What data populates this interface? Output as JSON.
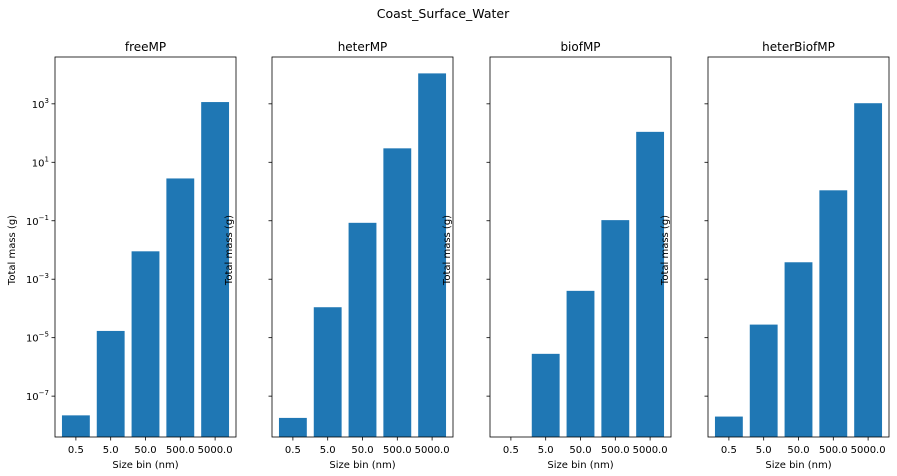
{
  "figure": {
    "title": "Coast_Surface_Water",
    "bar_color": "#1f77b4"
  },
  "chart_data": [
    {
      "type": "bar",
      "title": "freeMP",
      "xlabel": "Size bin (nm)",
      "ylabel": "Total mass (g)",
      "yscale": "log",
      "ylim": [
        4e-09,
        40000
      ],
      "yticks": [
        1e-07,
        1e-05,
        0.001,
        0.1,
        10,
        1000
      ],
      "ytick_labels": [
        {
          "base": "10",
          "exp": "−7"
        },
        {
          "base": "10",
          "exp": "−5"
        },
        {
          "base": "10",
          "exp": "−3"
        },
        {
          "base": "10",
          "exp": "−1"
        },
        {
          "base": "10",
          "exp": "1"
        },
        {
          "base": "10",
          "exp": "3"
        }
      ],
      "show_ytick_labels": true,
      "categories": [
        "0.5",
        "5.0",
        "50.0",
        "500.0",
        "5000.0"
      ],
      "values": [
        2.2e-08,
        1.7e-05,
        0.009,
        2.8,
        1150
      ]
    },
    {
      "type": "bar",
      "title": "heterMP",
      "xlabel": "Size bin (nm)",
      "ylabel": "Total mass (g)",
      "yscale": "log",
      "ylim": [
        4e-09,
        40000
      ],
      "yticks": [
        1e-07,
        1e-05,
        0.001,
        0.1,
        10,
        1000
      ],
      "show_ytick_labels": false,
      "categories": [
        "0.5",
        "5.0",
        "50.0",
        "500.0",
        "5000.0"
      ],
      "values": [
        1.8e-08,
        0.00011,
        0.085,
        30,
        11000
      ]
    },
    {
      "type": "bar",
      "title": "biofMP",
      "xlabel": "Size bin (nm)",
      "ylabel": "Total mass (g)",
      "yscale": "log",
      "ylim": [
        4e-09,
        40000
      ],
      "yticks": [
        1e-07,
        1e-05,
        0.001,
        0.1,
        10,
        1000
      ],
      "show_ytick_labels": false,
      "categories": [
        "0.5",
        "5.0",
        "50.0",
        "500.0",
        "5000.0"
      ],
      "values": [
        null,
        2.8e-06,
        0.0004,
        0.105,
        110
      ]
    },
    {
      "type": "bar",
      "title": "heterBiofMP",
      "xlabel": "Size bin (nm)",
      "ylabel": "Total mass (g)",
      "yscale": "log",
      "ylim": [
        4e-09,
        40000
      ],
      "yticks": [
        1e-07,
        1e-05,
        0.001,
        0.1,
        10,
        1000
      ],
      "show_ytick_labels": false,
      "categories": [
        "0.5",
        "5.0",
        "50.0",
        "500.0",
        "5000.0"
      ],
      "values": [
        2e-08,
        2.8e-05,
        0.0038,
        1.1,
        1050
      ]
    }
  ]
}
